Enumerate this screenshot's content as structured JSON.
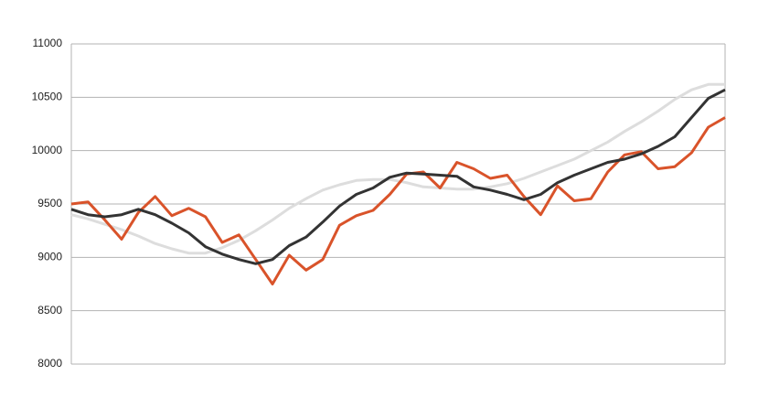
{
  "chart_data": {
    "type": "line",
    "series": [
      {
        "color": "#dddddd",
        "values": [
          9400,
          9360,
          9310,
          9260,
          9200,
          9130,
          9080,
          9040,
          9040,
          9090,
          9160,
          9250,
          9350,
          9460,
          9550,
          9630,
          9680,
          9720,
          9730,
          9730,
          9700,
          9660,
          9650,
          9640,
          9640,
          9660,
          9690,
          9740,
          9800,
          9860,
          9920,
          10000,
          10080,
          10180,
          10270,
          10370,
          10480,
          10570,
          10620,
          10620
        ]
      },
      {
        "color": "#d9532a",
        "values": [
          9500,
          9520,
          9350,
          9170,
          9420,
          9570,
          9390,
          9460,
          9380,
          9140,
          9210,
          8980,
          8750,
          9020,
          8880,
          8980,
          9300,
          9390,
          9440,
          9590,
          9780,
          9800,
          9650,
          9890,
          9830,
          9740,
          9770,
          9570,
          9400,
          9670,
          9530,
          9550,
          9800,
          9960,
          9990,
          9830,
          9850,
          9980,
          10220,
          10310
        ]
      },
      {
        "color": "#333333",
        "values": [
          9450,
          9400,
          9380,
          9400,
          9450,
          9400,
          9320,
          9230,
          9100,
          9030,
          8980,
          8940,
          8980,
          9110,
          9190,
          9330,
          9480,
          9590,
          9650,
          9750,
          9790,
          9780,
          9770,
          9760,
          9660,
          9630,
          9590,
          9540,
          9590,
          9700,
          9770,
          9830,
          9890,
          9920,
          9970,
          10040,
          10130,
          10310,
          10490,
          10570
        ]
      }
    ],
    "ylim": [
      8000,
      11000
    ],
    "yticks": [
      8000,
      8500,
      9000,
      9500,
      10000,
      10500,
      11000
    ],
    "grid": true
  }
}
